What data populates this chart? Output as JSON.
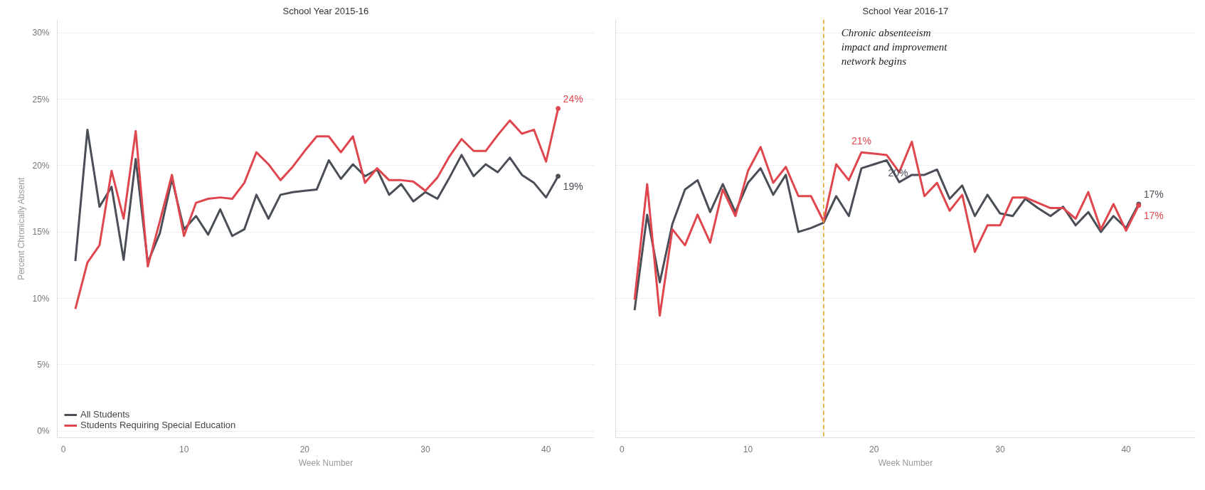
{
  "chart_data": [
    {
      "type": "line",
      "title": "School Year 2015-16",
      "xlabel": "Week Number",
      "ylabel": "Percent Chronically Absent",
      "x": [
        1,
        2,
        3,
        4,
        5,
        6,
        7,
        8,
        9,
        10,
        11,
        12,
        13,
        14,
        15,
        16,
        17,
        18,
        19,
        20,
        21,
        22,
        23,
        24,
        25,
        26,
        27,
        28,
        29,
        30,
        31,
        32,
        33,
        34,
        35,
        36,
        37,
        38,
        39,
        40,
        41
      ],
      "series": [
        {
          "name": "All Students",
          "color": "#4a4e57",
          "values": [
            12.8,
            22.7,
            16.9,
            18.4,
            12.9,
            20.5,
            12.7,
            14.9,
            19.0,
            15.2,
            16.2,
            14.8,
            16.7,
            14.7,
            15.2,
            17.8,
            16.0,
            17.8,
            18.0,
            18.1,
            18.2,
            20.4,
            19.0,
            20.1,
            19.2,
            19.7,
            17.8,
            18.6,
            17.3,
            18.0,
            17.5,
            19.1,
            20.8,
            19.2,
            20.1,
            19.5,
            20.6,
            19.3,
            18.7,
            17.6,
            19.2
          ],
          "value_labels": [
            null,
            null,
            null,
            null,
            null,
            null,
            null,
            null,
            null,
            null,
            null,
            null,
            null,
            null,
            null,
            null,
            null,
            null,
            null,
            null,
            null,
            null,
            null,
            null,
            null,
            null,
            null,
            null,
            null,
            null,
            null,
            null,
            null,
            null,
            null,
            null,
            null,
            null,
            null,
            null,
            "19%"
          ]
        },
        {
          "name": "Students Requiring Special Education",
          "color": "#e0464e",
          "values": [
            9.2,
            12.7,
            14.0,
            19.6,
            16.0,
            22.6,
            12.4,
            15.8,
            19.3,
            14.7,
            17.2,
            17.5,
            17.6,
            17.5,
            18.7,
            21.0,
            20.1,
            18.9,
            19.9,
            21.1,
            22.2,
            22.2,
            21.0,
            22.2,
            18.7,
            19.8,
            18.9,
            18.9,
            18.8,
            18.1,
            19.1,
            20.7,
            22.0,
            21.1,
            21.1,
            22.3,
            23.4,
            22.4,
            22.7,
            20.3,
            24.3
          ],
          "value_labels": [
            null,
            null,
            null,
            null,
            null,
            null,
            null,
            null,
            null,
            null,
            null,
            null,
            null,
            null,
            null,
            null,
            null,
            null,
            null,
            null,
            null,
            null,
            null,
            null,
            null,
            null,
            null,
            null,
            null,
            null,
            null,
            null,
            null,
            null,
            null,
            null,
            null,
            null,
            null,
            null,
            "24%"
          ]
        }
      ],
      "xlim": [
        -0.5,
        44
      ],
      "ylim": [
        -0.5,
        31
      ],
      "xticks": [
        0,
        10,
        20,
        30,
        40
      ],
      "yticks": [
        {
          "value": 0,
          "label": "0%"
        },
        {
          "value": 5,
          "label": "5%"
        },
        {
          "value": 10,
          "label": "10%"
        },
        {
          "value": 15,
          "label": "15%"
        },
        {
          "value": 20,
          "label": "20%"
        },
        {
          "value": 25,
          "label": "25%"
        },
        {
          "value": 30,
          "label": "30%"
        }
      ],
      "grid": "y",
      "legend": "bottom left",
      "line_style": "solid"
    },
    {
      "type": "line",
      "title": "School Year 2016-17",
      "xlabel": "Week Number",
      "x": [
        1,
        2,
        3,
        4,
        5,
        6,
        7,
        8,
        9,
        10,
        11,
        12,
        13,
        14,
        15,
        16,
        17,
        18,
        19,
        20,
        21,
        22,
        23,
        24,
        25,
        26,
        27,
        28,
        29,
        30,
        31,
        32,
        33,
        34,
        35,
        36,
        37,
        38,
        39,
        40,
        41
      ],
      "series": [
        {
          "color": "#4a4e57",
          "values": [
            9.1,
            16.3,
            11.2,
            15.6,
            18.2,
            18.9,
            16.5,
            18.6,
            16.5,
            18.7,
            19.8,
            17.8,
            19.3,
            15.0,
            15.3,
            15.7,
            17.7,
            16.2,
            19.8,
            20.1,
            20.4,
            18.75,
            19.3,
            19.3,
            19.7,
            17.5,
            18.5,
            16.2,
            17.8,
            16.4,
            16.2,
            17.5,
            16.8,
            16.2,
            16.9,
            15.5,
            16.5,
            15.0,
            16.2,
            15.3,
            17.1
          ],
          "value_labels": [
            null,
            null,
            null,
            null,
            null,
            null,
            null,
            null,
            null,
            null,
            null,
            null,
            null,
            null,
            null,
            null,
            null,
            null,
            null,
            null,
            "20%",
            null,
            null,
            null,
            null,
            null,
            null,
            null,
            null,
            null,
            null,
            null,
            null,
            null,
            null,
            null,
            null,
            null,
            null,
            null,
            "17%"
          ]
        },
        {
          "color": "#e0464e",
          "values": [
            9.9,
            18.6,
            8.7,
            15.2,
            14.0,
            16.3,
            14.2,
            18.2,
            16.2,
            19.6,
            21.4,
            18.7,
            19.9,
            17.7,
            17.7,
            15.8,
            20.1,
            18.9,
            21.0,
            20.9,
            20.8,
            19.5,
            21.8,
            17.7,
            18.7,
            16.6,
            17.8,
            13.5,
            15.5,
            15.5,
            17.6,
            17.6,
            17.2,
            16.8,
            16.8,
            16.0,
            18.0,
            15.2,
            17.1,
            15.1,
            17.0
          ],
          "value_labels": [
            null,
            null,
            null,
            null,
            null,
            null,
            null,
            null,
            null,
            null,
            null,
            null,
            null,
            null,
            null,
            null,
            null,
            null,
            "21%",
            null,
            null,
            null,
            null,
            null,
            null,
            null,
            null,
            null,
            null,
            null,
            null,
            null,
            null,
            null,
            null,
            null,
            null,
            null,
            null,
            null,
            "17%"
          ]
        }
      ],
      "xlim": [
        -0.5,
        45.5
      ],
      "ylim": [
        -0.5,
        31
      ],
      "xticks": [
        0,
        10,
        20,
        30,
        40
      ],
      "yticks": [
        {
          "value": 0,
          "label": null
        },
        {
          "value": 5,
          "label": null
        },
        {
          "value": 10,
          "label": null
        },
        {
          "value": 15,
          "label": null
        },
        {
          "value": 20,
          "label": null
        },
        {
          "value": 25,
          "label": null
        },
        {
          "value": 30,
          "label": null
        }
      ],
      "tick_labels": "x",
      "grid": "y",
      "line_style": "solid",
      "ref_lines": [
        {
          "axis": "x",
          "value": 16,
          "label": "Chronic absenteeism impact and improvement network begins",
          "color": "#e0a020",
          "line_style": "dashed"
        }
      ]
    }
  ]
}
